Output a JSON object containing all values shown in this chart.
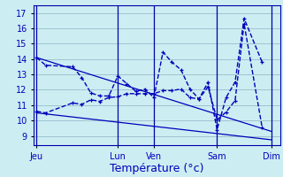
{
  "xlabel": "Température (°c)",
  "bg_color": "#cceef2",
  "grid_color": "#99bbcc",
  "line_color": "#0000bb",
  "ylim": [
    8.4,
    17.5
  ],
  "yticks": [
    9,
    10,
    11,
    12,
    13,
    14,
    15,
    16,
    17
  ],
  "day_labels": [
    "Jeu",
    "Lun",
    "Ven",
    "Sam",
    "Dim"
  ],
  "day_positions": [
    0,
    9,
    13,
    20,
    26
  ],
  "xlim": [
    -0.3,
    27
  ],
  "series1_x": [
    0,
    1,
    4,
    5,
    6,
    7,
    8,
    9,
    10,
    11,
    12,
    13,
    14,
    15,
    16,
    17,
    18,
    19,
    20,
    21,
    22,
    23,
    25
  ],
  "series1_y": [
    14.1,
    13.6,
    13.5,
    12.8,
    11.8,
    11.6,
    11.6,
    12.9,
    12.4,
    11.9,
    12.05,
    11.5,
    14.45,
    13.8,
    13.3,
    12.05,
    11.4,
    12.5,
    9.4,
    11.5,
    12.5,
    16.65,
    13.8
  ],
  "series2_x": [
    0,
    1,
    4,
    5,
    6,
    7,
    8,
    9,
    10,
    11,
    12,
    13,
    14,
    15,
    16,
    17,
    18,
    19,
    20,
    21,
    22,
    23,
    25
  ],
  "series2_y": [
    10.6,
    10.5,
    11.15,
    11.05,
    11.35,
    11.25,
    11.5,
    11.55,
    11.75,
    11.75,
    11.75,
    11.75,
    11.95,
    11.95,
    12.05,
    11.5,
    11.4,
    12.2,
    10.05,
    10.55,
    11.3,
    16.3,
    9.55
  ],
  "trend1_x": [
    0,
    26
  ],
  "trend1_y": [
    14.1,
    9.3
  ],
  "trend2_x": [
    0,
    26
  ],
  "trend2_y": [
    10.5,
    8.75
  ],
  "xlabel_color": "#0000bb",
  "xlabel_fontsize": 9,
  "tick_fontsize": 7,
  "tick_color": "#0000bb",
  "spine_color": "#0000aa",
  "marker_size": 3.5,
  "lw_main": 1.0,
  "lw_trend": 0.9
}
